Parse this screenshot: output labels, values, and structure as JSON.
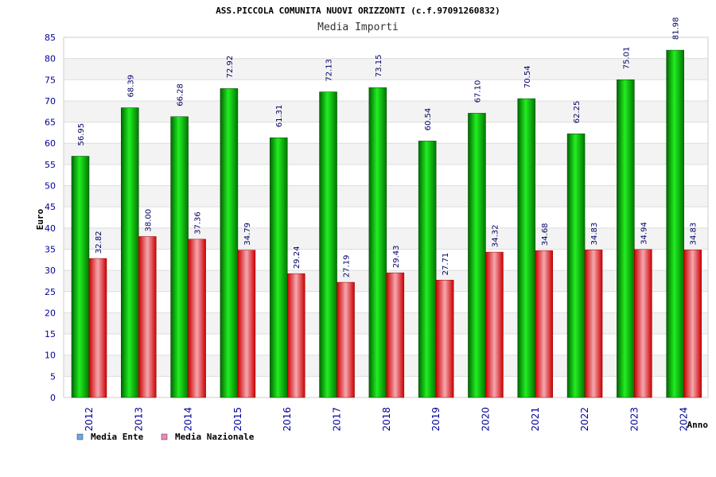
{
  "chart_data": {
    "type": "bar",
    "title": "ASS.PICCOLA COMUNITA NUOVI ORIZZONTI (c.f.97091260832)",
    "subtitle": "Media Importi",
    "xlabel": "Anno",
    "ylabel": "Euro",
    "ylim": [
      0,
      85
    ],
    "yticks": [
      "0",
      "5",
      "10",
      "15",
      "20",
      "25",
      "30",
      "35",
      "40",
      "45",
      "50",
      "55",
      "60",
      "65",
      "70",
      "75",
      "80",
      "85"
    ],
    "categories": [
      "2012",
      "2013",
      "2014",
      "2015",
      "2016",
      "2017",
      "2018",
      "2019",
      "2020",
      "2021",
      "2022",
      "2023",
      "2024"
    ],
    "series": [
      {
        "name": "Media Ente",
        "color": "#00cc00",
        "legend_color": "#66aaee",
        "values": [
          56.95,
          68.39,
          66.28,
          72.92,
          61.31,
          72.13,
          73.15,
          60.54,
          67.1,
          70.54,
          62.25,
          75.01,
          81.98
        ],
        "labels": [
          "56.95",
          "68.39",
          "66.28",
          "72.92",
          "61.31",
          "72.13",
          "73.15",
          "60.54",
          "67.10",
          "70.54",
          "62.25",
          "75.01",
          "81.98"
        ]
      },
      {
        "name": "Media Nazionale",
        "color": "#ee0000",
        "legend_color": "#ee88bb",
        "values": [
          32.82,
          38.0,
          37.36,
          34.79,
          29.24,
          27.19,
          29.43,
          27.71,
          34.32,
          34.68,
          34.83,
          34.94,
          34.83
        ],
        "labels": [
          "32.82",
          "38.00",
          "37.36",
          "34.79",
          "29.24",
          "27.19",
          "29.43",
          "27.71",
          "34.32",
          "34.68",
          "34.83",
          "34.94",
          "34.83"
        ]
      }
    ],
    "grid": true,
    "legend": "bottom-left"
  }
}
